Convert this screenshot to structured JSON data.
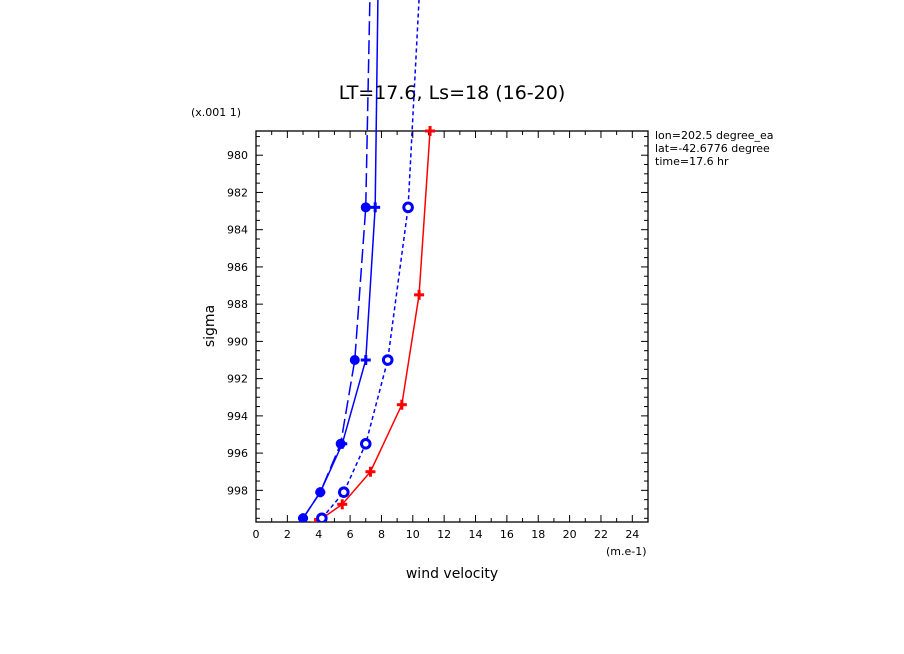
{
  "chart_data": {
    "type": "line",
    "title": "LT=17.6, Ls=18 (16-20)",
    "xlabel": "wind velocity",
    "ylabel": "sigma",
    "x_unit_label": "(m.e-1)",
    "y_scale_label": "(x.001 1)",
    "xlim": [
      0,
      25
    ],
    "ylim": [
      999.7,
      978.7
    ],
    "x_ticks": [
      0,
      2,
      4,
      6,
      8,
      10,
      12,
      14,
      16,
      18,
      20,
      22,
      24
    ],
    "y_ticks": [
      980,
      982,
      984,
      986,
      988,
      990,
      992,
      994,
      996,
      998
    ],
    "annotations": [
      "lon=202.5 degree_ea",
      "lat=-42.6776 degree",
      "time=17.6 hr"
    ],
    "series": [
      {
        "color": "#ff0000",
        "dash": "solid",
        "marker": "plus",
        "points": [
          [
            3.8,
            999.75
          ],
          [
            5.5,
            998.75
          ],
          [
            7.3,
            997.0
          ],
          [
            9.3,
            993.4
          ],
          [
            10.4,
            987.5
          ],
          [
            11.1,
            978.7
          ]
        ]
      },
      {
        "color": "#0000ff",
        "dash": "solid",
        "marker": "plus",
        "points": [
          [
            3.0,
            999.5
          ],
          [
            4.1,
            998.1
          ],
          [
            5.5,
            995.5
          ],
          [
            7.0,
            991.0
          ],
          [
            7.6,
            982.8
          ],
          [
            7.8,
            970.0
          ]
        ]
      },
      {
        "color": "#0000ff",
        "dash": "longdash",
        "marker": "filled-circle",
        "points": [
          [
            3.0,
            999.5
          ],
          [
            4.1,
            998.1
          ],
          [
            5.4,
            995.5
          ],
          [
            6.3,
            991.0
          ],
          [
            7.0,
            982.8
          ],
          [
            7.3,
            970.0
          ]
        ]
      },
      {
        "color": "#0000ff",
        "dash": "shortdash",
        "marker": "open-circle",
        "points": [
          [
            4.2,
            999.5
          ],
          [
            5.6,
            998.1
          ],
          [
            7.0,
            995.5
          ],
          [
            8.4,
            991.0
          ],
          [
            9.7,
            982.8
          ],
          [
            10.5,
            970.0
          ]
        ]
      }
    ]
  }
}
